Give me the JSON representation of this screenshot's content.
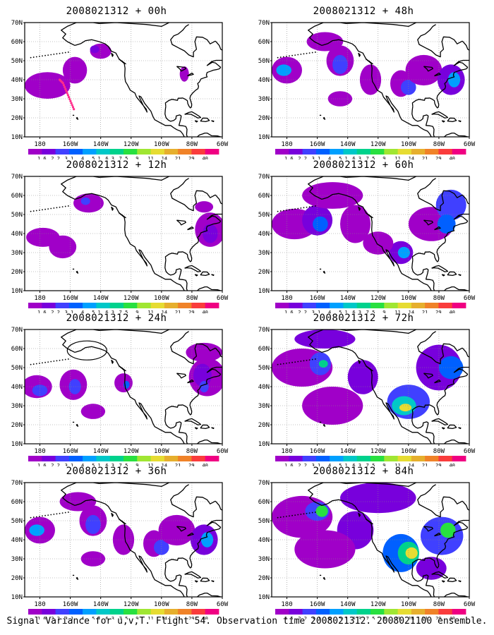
{
  "figure": {
    "caption": "Signal Variance for u,v,T. Flight 54. Observation time 2008021312. 2008021100 ensemble."
  },
  "axes": {
    "lat_labels": [
      "70N",
      "60N",
      "50N",
      "40N",
      "30N",
      "20N",
      "10N"
    ],
    "lon_labels": [
      "180",
      "160W",
      "140W",
      "120W",
      "100W",
      "80W",
      "60W"
    ]
  },
  "colorbar": {
    "labels": [
      "1.6",
      "2.2",
      "3.1",
      "4",
      "5.1",
      "6.3",
      "7.5",
      "9",
      "11",
      "14",
      "21",
      "29",
      "40"
    ],
    "colors": [
      "#a000c8",
      "#7800dc",
      "#4040ff",
      "#0060ff",
      "#00a0ff",
      "#00c8c8",
      "#00d28c",
      "#28e040",
      "#a0e632",
      "#e6dc32",
      "#e6af2d",
      "#f08228",
      "#fa3c3c",
      "#f00082"
    ]
  },
  "panels": [
    {
      "id": "p00",
      "title": "2008021312 + 00h",
      "col": 0,
      "row": 0,
      "level": 1
    },
    {
      "id": "p48",
      "title": "2008021312 + 48h",
      "col": 1,
      "row": 0,
      "level": 4
    },
    {
      "id": "p12",
      "title": "2008021312 + 12h",
      "col": 0,
      "row": 1,
      "level": 2
    },
    {
      "id": "p60",
      "title": "2008021312 + 60h",
      "col": 1,
      "row": 1,
      "level": 5
    },
    {
      "id": "p24",
      "title": "2008021312 + 24h",
      "col": 0,
      "row": 2,
      "level": 3
    },
    {
      "id": "p72",
      "title": "2008021312 + 72h",
      "col": 1,
      "row": 2,
      "level": 6
    },
    {
      "id": "p36",
      "title": "2008021312 + 36h",
      "col": 0,
      "row": 3,
      "level": 4
    },
    {
      "id": "p84",
      "title": "2008021312 + 84h",
      "col": 1,
      "row": 3,
      "level": 7
    }
  ]
}
